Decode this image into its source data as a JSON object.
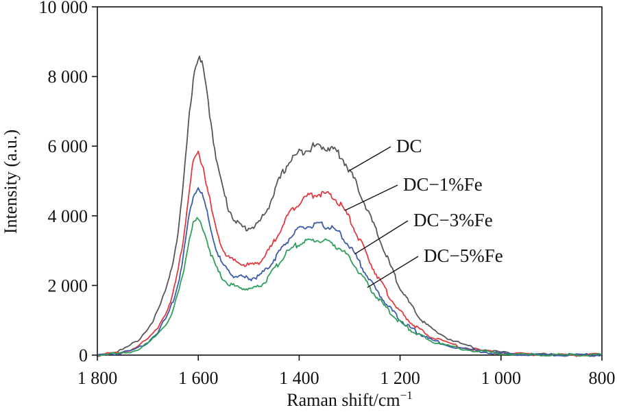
{
  "chart_data": {
    "type": "line",
    "title": "",
    "xlabel": "Raman shift/cm",
    "xlabel_sup": "−1",
    "ylabel": "Intensity (a.u.)",
    "xlim": [
      1800,
      800
    ],
    "ylim": [
      0,
      10000
    ],
    "x_reversed": true,
    "grid": false,
    "legend": "inline labels with leader lines",
    "x_ticks": [
      1800,
      1600,
      1400,
      1200,
      1000,
      800
    ],
    "x_tick_labels": [
      "1 800",
      "1 600",
      "1 400",
      "1 200",
      "1 000",
      "800"
    ],
    "y_ticks": [
      0,
      2000,
      4000,
      6000,
      8000,
      10000
    ],
    "y_tick_labels": [
      "0",
      "2 000",
      "4 000",
      "6 000",
      "8 000",
      "10 000"
    ],
    "x": [
      1800,
      1780,
      1760,
      1740,
      1720,
      1700,
      1680,
      1660,
      1650,
      1640,
      1630,
      1620,
      1610,
      1600,
      1590,
      1580,
      1570,
      1560,
      1550,
      1540,
      1530,
      1520,
      1510,
      1500,
      1490,
      1480,
      1470,
      1460,
      1450,
      1440,
      1430,
      1420,
      1410,
      1400,
      1390,
      1380,
      1370,
      1360,
      1350,
      1340,
      1330,
      1320,
      1310,
      1300,
      1290,
      1280,
      1270,
      1260,
      1250,
      1240,
      1230,
      1220,
      1210,
      1200,
      1190,
      1180,
      1170,
      1160,
      1150,
      1140,
      1120,
      1100,
      1080,
      1060,
      1040,
      1020,
      1000,
      980,
      960,
      940,
      920,
      900,
      880,
      860,
      840,
      820,
      800
    ],
    "series": [
      {
        "name": "DC",
        "color": "#555555",
        "values": [
          0,
          50,
          110,
          220,
          420,
          750,
          1250,
          2050,
          2700,
          3550,
          4800,
          6500,
          8000,
          8600,
          8200,
          7200,
          6200,
          5300,
          4700,
          4200,
          3950,
          3750,
          3650,
          3650,
          3700,
          3800,
          4000,
          4300,
          4650,
          5000,
          5300,
          5550,
          5700,
          5800,
          5900,
          5950,
          5980,
          6000,
          5980,
          5950,
          5900,
          5750,
          5550,
          5300,
          5000,
          4700,
          4350,
          4000,
          3650,
          3300,
          2950,
          2600,
          2250,
          1950,
          1700,
          1450,
          1250,
          1050,
          900,
          780,
          600,
          450,
          330,
          250,
          180,
          120,
          80,
          50,
          30,
          20,
          15,
          10,
          10,
          5,
          5,
          5,
          5
        ]
      },
      {
        "name": "DC−1%Fe",
        "color": "#e03a3e",
        "values": [
          0,
          30,
          60,
          120,
          250,
          450,
          800,
          1350,
          1800,
          2400,
          3300,
          4500,
          5500,
          5800,
          5400,
          4650,
          3900,
          3350,
          3000,
          2800,
          2700,
          2650,
          2600,
          2580,
          2600,
          2680,
          2800,
          3000,
          3250,
          3550,
          3800,
          4050,
          4250,
          4400,
          4500,
          4580,
          4620,
          4640,
          4620,
          4580,
          4500,
          4350,
          4150,
          3900,
          3600,
          3300,
          3000,
          2700,
          2400,
          2150,
          1900,
          1650,
          1450,
          1250,
          1100,
          950,
          830,
          720,
          620,
          540,
          420,
          320,
          240,
          180,
          130,
          90,
          60,
          40,
          25,
          15,
          10,
          5,
          5,
          5,
          5,
          5,
          5
        ]
      },
      {
        "name": "DC−3%Fe",
        "color": "#3a5ba8",
        "values": [
          0,
          25,
          50,
          100,
          200,
          380,
          680,
          1150,
          1550,
          2050,
          2800,
          3850,
          4600,
          4850,
          4500,
          3900,
          3300,
          2850,
          2550,
          2400,
          2300,
          2250,
          2220,
          2200,
          2220,
          2280,
          2380,
          2550,
          2750,
          2950,
          3150,
          3350,
          3500,
          3600,
          3660,
          3700,
          3720,
          3730,
          3720,
          3680,
          3600,
          3480,
          3320,
          3120,
          2900,
          2650,
          2400,
          2150,
          1930,
          1720,
          1530,
          1350,
          1180,
          1030,
          900,
          790,
          690,
          600,
          520,
          450,
          350,
          270,
          200,
          150,
          110,
          75,
          50,
          30,
          20,
          10,
          8,
          5,
          5,
          5,
          5,
          5,
          5
        ]
      },
      {
        "name": "DC−5%Fe",
        "color": "#2e9e5b",
        "values": [
          0,
          20,
          40,
          85,
          170,
          320,
          580,
          980,
          1300,
          1750,
          2350,
          3200,
          3800,
          3900,
          3650,
          3150,
          2700,
          2380,
          2180,
          2060,
          1990,
          1950,
          1920,
          1900,
          1920,
          1980,
          2080,
          2250,
          2450,
          2650,
          2850,
          3000,
          3120,
          3200,
          3250,
          3280,
          3300,
          3300,
          3280,
          3240,
          3170,
          3070,
          2930,
          2760,
          2570,
          2360,
          2150,
          1940,
          1740,
          1560,
          1390,
          1230,
          1080,
          950,
          830,
          730,
          640,
          560,
          490,
          420,
          330,
          250,
          190,
          140,
          100,
          70,
          45,
          30,
          20,
          10,
          8,
          5,
          5,
          5,
          5,
          5,
          5
        ]
      }
    ],
    "annotations": [
      {
        "text": "DC",
        "series": "DC",
        "anchor_x": 1300
      },
      {
        "text": "DC−1%Fe",
        "series": "DC−1%Fe",
        "anchor_x": 1310
      },
      {
        "text": "DC−3%Fe",
        "series": "DC−3%Fe",
        "anchor_x": 1290
      },
      {
        "text": "DC−5%Fe",
        "series": "DC−5%Fe",
        "anchor_x": 1265
      }
    ]
  }
}
